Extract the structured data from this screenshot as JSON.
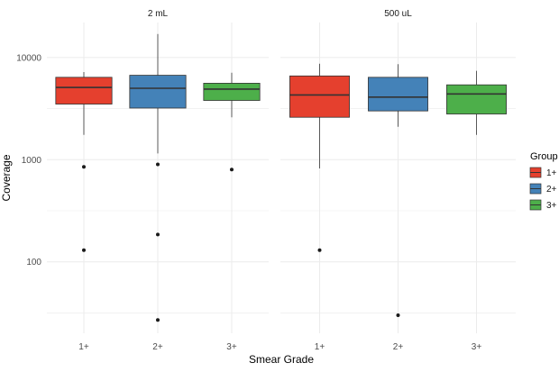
{
  "chart_data": {
    "type": "box",
    "xlabel": "Smear Grade",
    "ylabel": "Coverage",
    "y_scale": "log10",
    "ylim": [
      20,
      22000
    ],
    "y_ticks": [
      {
        "value": 100,
        "label": "100"
      },
      {
        "value": 1000,
        "label": "1000"
      },
      {
        "value": 10000,
        "label": "10000"
      }
    ],
    "categories": [
      "1+",
      "2+",
      "3+"
    ],
    "legend": {
      "title": "Group",
      "placement": "right",
      "items": [
        {
          "label": "1+",
          "color": "#e5402e"
        },
        {
          "label": "2+",
          "color": "#4482b8"
        },
        {
          "label": "3+",
          "color": "#4daf4a"
        }
      ]
    },
    "facets": [
      {
        "label": "2 mL",
        "boxes": [
          {
            "category": "1+",
            "group": "1+",
            "color": "#e5402e",
            "whisker_low": 1750,
            "q1": 3500,
            "median": 5100,
            "q3": 6400,
            "whisker_high": 7200,
            "outliers": [
              850,
              130
            ]
          },
          {
            "category": "2+",
            "group": "2+",
            "color": "#4482b8",
            "whisker_low": 1150,
            "q1": 3200,
            "median": 5000,
            "q3": 6700,
            "whisker_high": 17000,
            "outliers": [
              900,
              185,
              27
            ]
          },
          {
            "category": "3+",
            "group": "3+",
            "color": "#4daf4a",
            "whisker_low": 2600,
            "q1": 3800,
            "median": 4900,
            "q3": 5600,
            "whisker_high": 7100,
            "outliers": [
              800
            ]
          }
        ]
      },
      {
        "label": "500 uL",
        "boxes": [
          {
            "category": "1+",
            "group": "1+",
            "color": "#e5402e",
            "whisker_low": 820,
            "q1": 2600,
            "median": 4300,
            "q3": 6600,
            "whisker_high": 8700,
            "outliers": [
              130
            ]
          },
          {
            "category": "2+",
            "group": "2+",
            "color": "#4482b8",
            "whisker_low": 2100,
            "q1": 3000,
            "median": 4100,
            "q3": 6400,
            "whisker_high": 8600,
            "outliers": [
              30
            ]
          },
          {
            "category": "3+",
            "group": "3+",
            "color": "#4daf4a",
            "whisker_low": 1750,
            "q1": 2800,
            "median": 4400,
            "q3": 5400,
            "whisker_high": 7400,
            "outliers": []
          }
        ]
      }
    ],
    "grid": true,
    "colors": {
      "panel_grid": "#ebebeb",
      "box_outline": "#333333",
      "tick_text": "#4d4d4d"
    }
  }
}
